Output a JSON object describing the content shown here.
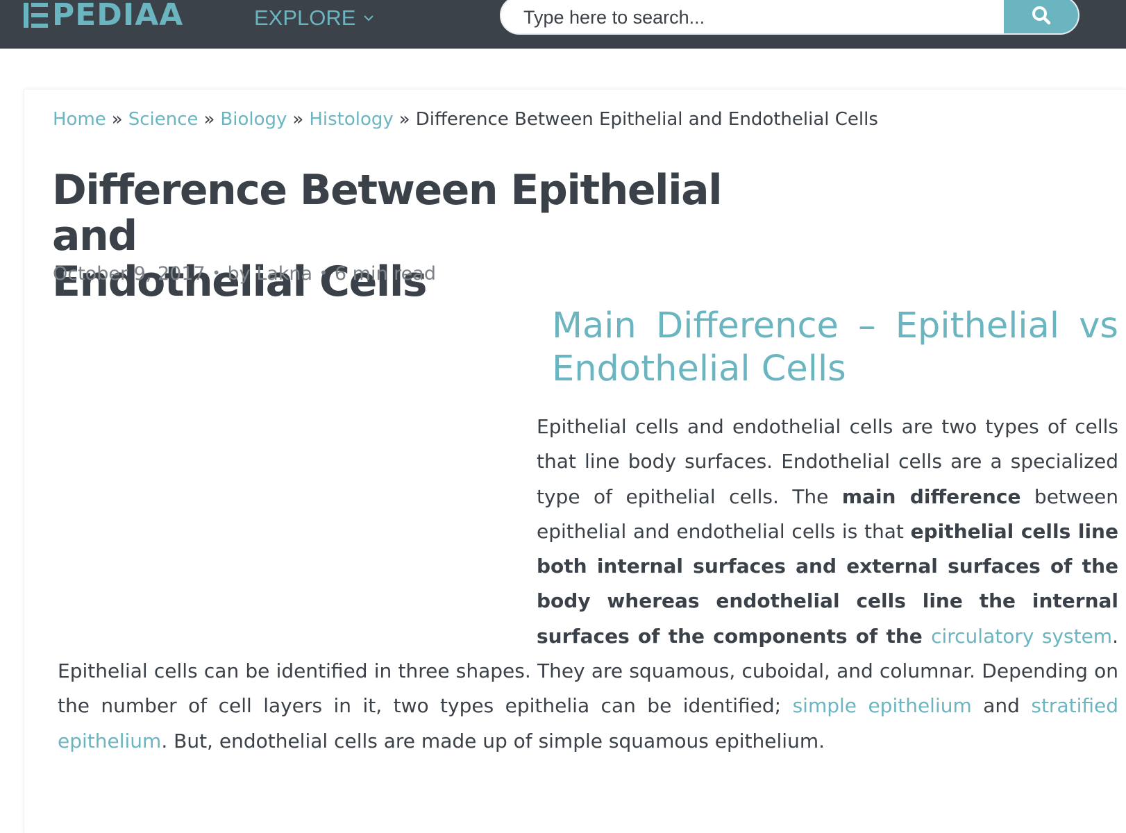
{
  "header": {
    "logo_text": "PEDIAA",
    "explore_label": "EXPLORE",
    "search_placeholder": "Type here to search...",
    "accent_color": "#6bb5c0",
    "bar_color": "#3b4249"
  },
  "breadcrumb": {
    "items": [
      "Home",
      "Science",
      "Biology",
      "Histology"
    ],
    "separator": "»",
    "current": "Difference Between Epithelial and Endothelial Cells"
  },
  "article": {
    "title_line1": "Difference Between Epithelial and",
    "title_line2": "Endothelial Cells",
    "date": "October 9, 2017",
    "author": "by Lakna",
    "read_time": "6 min read",
    "meta_separator": "•",
    "section_heading_line1": "Main Difference – Epithelial vs",
    "section_heading_line2": "Endothelial Cells",
    "paragraph": {
      "t1": "Epithelial cells and endothelial cells are two types of cells that line body surfaces. Endothelial cells are a specialized type of epithelial cells. The ",
      "b1": "main difference",
      "t2": " between epithelial and endothelial cells is that ",
      "b2": "epithelial cells line both internal surfaces and external surfaces of the body whereas endothelial cells line the internal surfaces of the components of the ",
      "link1": "circulatory system",
      "t3": ". Epithelial cells can be identified in three shapes. They are squamous, cuboidal, and columnar. Depending on the number of cell layers in it, two types epithelia can be identified; ",
      "link2": "simple epithelium",
      "t4": " and ",
      "link3": "stratified epithelium",
      "t5": ". But, endothelial cells are made up of simple squamous epithelium."
    }
  }
}
